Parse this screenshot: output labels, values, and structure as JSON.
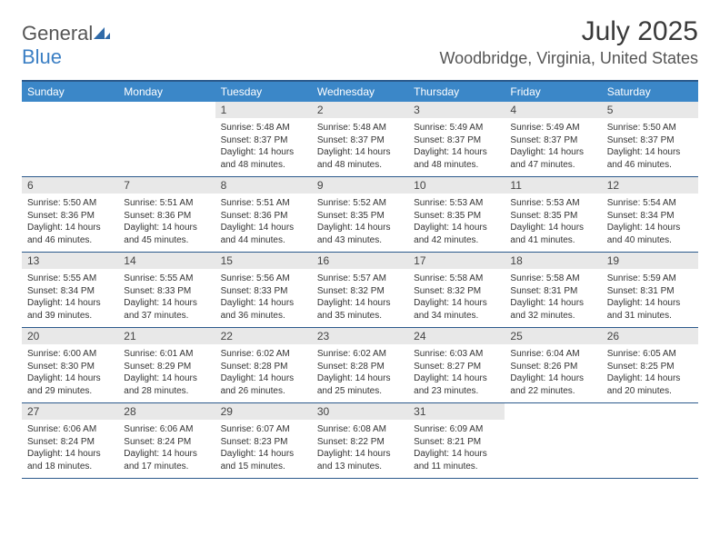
{
  "brand": {
    "text1": "General",
    "text2": "Blue"
  },
  "title": {
    "month": "July 2025",
    "location": "Woodbridge, Virginia, United States"
  },
  "colors": {
    "header_bg": "#3b87c8",
    "border": "#2c5a8c",
    "daynum_bg": "#e8e8e8",
    "text": "#333333",
    "brand_gray": "#555555",
    "brand_blue": "#3b7fc4"
  },
  "dayNames": [
    "Sunday",
    "Monday",
    "Tuesday",
    "Wednesday",
    "Thursday",
    "Friday",
    "Saturday"
  ],
  "weeks": [
    [
      {
        "n": "",
        "sr": "",
        "ss": "",
        "dl": ""
      },
      {
        "n": "",
        "sr": "",
        "ss": "",
        "dl": ""
      },
      {
        "n": "1",
        "sr": "Sunrise: 5:48 AM",
        "ss": "Sunset: 8:37 PM",
        "dl": "Daylight: 14 hours and 48 minutes."
      },
      {
        "n": "2",
        "sr": "Sunrise: 5:48 AM",
        "ss": "Sunset: 8:37 PM",
        "dl": "Daylight: 14 hours and 48 minutes."
      },
      {
        "n": "3",
        "sr": "Sunrise: 5:49 AM",
        "ss": "Sunset: 8:37 PM",
        "dl": "Daylight: 14 hours and 48 minutes."
      },
      {
        "n": "4",
        "sr": "Sunrise: 5:49 AM",
        "ss": "Sunset: 8:37 PM",
        "dl": "Daylight: 14 hours and 47 minutes."
      },
      {
        "n": "5",
        "sr": "Sunrise: 5:50 AM",
        "ss": "Sunset: 8:37 PM",
        "dl": "Daylight: 14 hours and 46 minutes."
      }
    ],
    [
      {
        "n": "6",
        "sr": "Sunrise: 5:50 AM",
        "ss": "Sunset: 8:36 PM",
        "dl": "Daylight: 14 hours and 46 minutes."
      },
      {
        "n": "7",
        "sr": "Sunrise: 5:51 AM",
        "ss": "Sunset: 8:36 PM",
        "dl": "Daylight: 14 hours and 45 minutes."
      },
      {
        "n": "8",
        "sr": "Sunrise: 5:51 AM",
        "ss": "Sunset: 8:36 PM",
        "dl": "Daylight: 14 hours and 44 minutes."
      },
      {
        "n": "9",
        "sr": "Sunrise: 5:52 AM",
        "ss": "Sunset: 8:35 PM",
        "dl": "Daylight: 14 hours and 43 minutes."
      },
      {
        "n": "10",
        "sr": "Sunrise: 5:53 AM",
        "ss": "Sunset: 8:35 PM",
        "dl": "Daylight: 14 hours and 42 minutes."
      },
      {
        "n": "11",
        "sr": "Sunrise: 5:53 AM",
        "ss": "Sunset: 8:35 PM",
        "dl": "Daylight: 14 hours and 41 minutes."
      },
      {
        "n": "12",
        "sr": "Sunrise: 5:54 AM",
        "ss": "Sunset: 8:34 PM",
        "dl": "Daylight: 14 hours and 40 minutes."
      }
    ],
    [
      {
        "n": "13",
        "sr": "Sunrise: 5:55 AM",
        "ss": "Sunset: 8:34 PM",
        "dl": "Daylight: 14 hours and 39 minutes."
      },
      {
        "n": "14",
        "sr": "Sunrise: 5:55 AM",
        "ss": "Sunset: 8:33 PM",
        "dl": "Daylight: 14 hours and 37 minutes."
      },
      {
        "n": "15",
        "sr": "Sunrise: 5:56 AM",
        "ss": "Sunset: 8:33 PM",
        "dl": "Daylight: 14 hours and 36 minutes."
      },
      {
        "n": "16",
        "sr": "Sunrise: 5:57 AM",
        "ss": "Sunset: 8:32 PM",
        "dl": "Daylight: 14 hours and 35 minutes."
      },
      {
        "n": "17",
        "sr": "Sunrise: 5:58 AM",
        "ss": "Sunset: 8:32 PM",
        "dl": "Daylight: 14 hours and 34 minutes."
      },
      {
        "n": "18",
        "sr": "Sunrise: 5:58 AM",
        "ss": "Sunset: 8:31 PM",
        "dl": "Daylight: 14 hours and 32 minutes."
      },
      {
        "n": "19",
        "sr": "Sunrise: 5:59 AM",
        "ss": "Sunset: 8:31 PM",
        "dl": "Daylight: 14 hours and 31 minutes."
      }
    ],
    [
      {
        "n": "20",
        "sr": "Sunrise: 6:00 AM",
        "ss": "Sunset: 8:30 PM",
        "dl": "Daylight: 14 hours and 29 minutes."
      },
      {
        "n": "21",
        "sr": "Sunrise: 6:01 AM",
        "ss": "Sunset: 8:29 PM",
        "dl": "Daylight: 14 hours and 28 minutes."
      },
      {
        "n": "22",
        "sr": "Sunrise: 6:02 AM",
        "ss": "Sunset: 8:28 PM",
        "dl": "Daylight: 14 hours and 26 minutes."
      },
      {
        "n": "23",
        "sr": "Sunrise: 6:02 AM",
        "ss": "Sunset: 8:28 PM",
        "dl": "Daylight: 14 hours and 25 minutes."
      },
      {
        "n": "24",
        "sr": "Sunrise: 6:03 AM",
        "ss": "Sunset: 8:27 PM",
        "dl": "Daylight: 14 hours and 23 minutes."
      },
      {
        "n": "25",
        "sr": "Sunrise: 6:04 AM",
        "ss": "Sunset: 8:26 PM",
        "dl": "Daylight: 14 hours and 22 minutes."
      },
      {
        "n": "26",
        "sr": "Sunrise: 6:05 AM",
        "ss": "Sunset: 8:25 PM",
        "dl": "Daylight: 14 hours and 20 minutes."
      }
    ],
    [
      {
        "n": "27",
        "sr": "Sunrise: 6:06 AM",
        "ss": "Sunset: 8:24 PM",
        "dl": "Daylight: 14 hours and 18 minutes."
      },
      {
        "n": "28",
        "sr": "Sunrise: 6:06 AM",
        "ss": "Sunset: 8:24 PM",
        "dl": "Daylight: 14 hours and 17 minutes."
      },
      {
        "n": "29",
        "sr": "Sunrise: 6:07 AM",
        "ss": "Sunset: 8:23 PM",
        "dl": "Daylight: 14 hours and 15 minutes."
      },
      {
        "n": "30",
        "sr": "Sunrise: 6:08 AM",
        "ss": "Sunset: 8:22 PM",
        "dl": "Daylight: 14 hours and 13 minutes."
      },
      {
        "n": "31",
        "sr": "Sunrise: 6:09 AM",
        "ss": "Sunset: 8:21 PM",
        "dl": "Daylight: 14 hours and 11 minutes."
      },
      {
        "n": "",
        "sr": "",
        "ss": "",
        "dl": ""
      },
      {
        "n": "",
        "sr": "",
        "ss": "",
        "dl": ""
      }
    ]
  ]
}
